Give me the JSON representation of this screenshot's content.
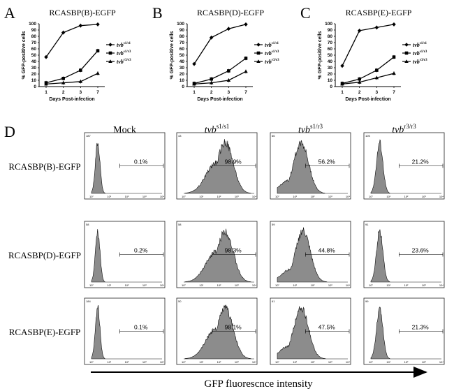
{
  "chart_data": [
    {
      "type": "line",
      "panel": "A",
      "title": "RCASBP(B)-EGFP",
      "xlabel": "Days Post-infection",
      "ylabel": "% GFP-positive cells",
      "x": [
        1,
        2,
        3,
        7
      ],
      "x_tick_labels": [
        "1",
        "2",
        "3",
        "7"
      ],
      "ylim": [
        0,
        100
      ],
      "y_ticks": [
        0,
        10,
        20,
        30,
        40,
        50,
        60,
        70,
        80,
        90,
        100
      ],
      "series": [
        {
          "name": "tvb",
          "sup": "s1/s1",
          "marker": "diamond",
          "values": [
            47,
            86,
            97,
            99
          ]
        },
        {
          "name": "tvb",
          "sup": "s1/r3",
          "marker": "square",
          "values": [
            6,
            13,
            26,
            57
          ]
        },
        {
          "name": "tvb",
          "sup": "r3/r3",
          "marker": "triangle",
          "values": [
            4,
            6,
            8,
            21
          ]
        }
      ]
    },
    {
      "type": "line",
      "panel": "B",
      "title": "RCASBP(D)-EGFP",
      "xlabel": "Days Post-infection",
      "ylabel": "% GFP-positive cells",
      "x": [
        1,
        2,
        3,
        7
      ],
      "x_tick_labels": [
        "1",
        "2",
        "3",
        "7"
      ],
      "ylim": [
        0,
        100
      ],
      "y_ticks": [
        0,
        10,
        20,
        30,
        40,
        50,
        60,
        70,
        80,
        90,
        100
      ],
      "series": [
        {
          "name": "tvb",
          "sup": "s1/s1",
          "marker": "diamond",
          "values": [
            36,
            78,
            92,
            99
          ]
        },
        {
          "name": "tvb",
          "sup": "s1/r3",
          "marker": "square",
          "values": [
            5,
            12,
            25,
            45
          ]
        },
        {
          "name": "tvb",
          "sup": "r3/r3",
          "marker": "triangle",
          "values": [
            4,
            6,
            10,
            24
          ]
        }
      ]
    },
    {
      "type": "line",
      "panel": "C",
      "title": "RCASBP(E)-EGFP",
      "xlabel": "Days Post-infection",
      "ylabel": "% GFP-positive cells",
      "x": [
        1,
        2,
        3,
        7
      ],
      "x_tick_labels": [
        "1",
        "2",
        "3",
        "7"
      ],
      "ylim": [
        0,
        100
      ],
      "y_ticks": [
        0,
        10,
        20,
        30,
        40,
        50,
        60,
        70,
        80,
        90,
        100
      ],
      "series": [
        {
          "name": "tvb",
          "sup": "s1/s1",
          "marker": "diamond",
          "values": [
            33,
            89,
            94,
            99
          ]
        },
        {
          "name": "tvb",
          "sup": "s1/r3",
          "marker": "square",
          "values": [
            5,
            12,
            26,
            47
          ]
        },
        {
          "name": "tvb",
          "sup": "r3/r3",
          "marker": "triangle",
          "values": [
            4,
            7,
            14,
            21
          ]
        }
      ]
    },
    {
      "type": "histogram-grid",
      "panel": "D",
      "xlabel": "GFP fluorescnce intensity",
      "columns": [
        {
          "label": "Mock",
          "sup": ""
        },
        {
          "label": "tvb",
          "sup": "s1/s1"
        },
        {
          "label": "tvb",
          "sup": "s1/r3"
        },
        {
          "label": "tvb",
          "sup": "r3/r3"
        }
      ],
      "rows": [
        {
          "label": "RCASBP(B)-EGFP",
          "percents": [
            "0.1%",
            "98.9%",
            "56.2%",
            "21.2%"
          ],
          "ymax": [
            "187",
            "43",
            "66",
            "105"
          ]
        },
        {
          "label": "RCASBP(D)-EGFP",
          "percents": [
            "0.2%",
            "98.3%",
            "44.8%",
            "23.6%"
          ],
          "ymax": [
            "58",
            "58",
            "59",
            "91"
          ]
        },
        {
          "label": "RCASBP(E)-EGFP",
          "percents": [
            "0.1%",
            "98.1%",
            "47.5%",
            "21.3%"
          ],
          "ymax": [
            "184",
            "50",
            "61",
            "99"
          ]
        }
      ],
      "x_tick_labels": [
        "10°",
        "10¹",
        "10²",
        "10³",
        "10⁴"
      ],
      "peak_log": [
        0.35,
        2.35,
        1.35,
        0.5
      ],
      "peak_width": [
        0.13,
        0.45,
        0.42,
        0.18
      ],
      "gate_start_log": [
        1.6,
        1.6,
        1.6,
        1.6
      ]
    }
  ]
}
